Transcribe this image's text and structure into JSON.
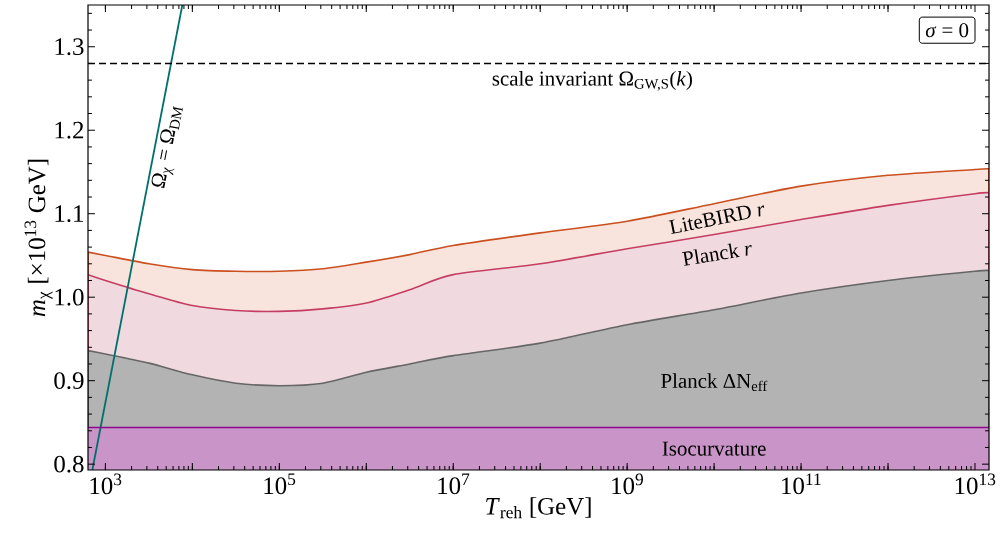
{
  "chart_data": {
    "type": "area",
    "xlabel": "*T*$_{reh}$ [GeV]",
    "ylabel": "*m*$_{χ}$ [×10$^{13}$ GeV]",
    "log": "x",
    "xlim": [
      631,
      14500000000000.0
    ],
    "ylim": [
      0.793,
      1.35
    ],
    "xticks": [
      {
        "value": 1000,
        "label": "10$^{3}$"
      },
      {
        "value": 10000,
        "label": null
      },
      {
        "value": 100000,
        "label": "10$^{5}$"
      },
      {
        "value": 1000000,
        "label": null
      },
      {
        "value": 10000000,
        "label": "10$^{7}$"
      },
      {
        "value": 100000000,
        "label": null
      },
      {
        "value": 1000000000,
        "label": "10$^{9}$"
      },
      {
        "value": 10000000000,
        "label": null
      },
      {
        "value": 100000000000,
        "label": "10$^{11}$"
      },
      {
        "value": 1000000000000,
        "label": null
      },
      {
        "value": 10000000000000,
        "label": "10$^{13}$"
      }
    ],
    "yticks": [
      {
        "value": 0.8,
        "label": "0.8"
      },
      {
        "value": 0.9,
        "label": "0.9"
      },
      {
        "value": 1.0,
        "label": "1.0"
      },
      {
        "value": 1.1,
        "label": "1.1"
      },
      {
        "value": 1.2,
        "label": "1.2"
      },
      {
        "value": 1.3,
        "label": "1.3"
      }
    ],
    "x": [
      631,
      1000,
      3162,
      10000,
      31623,
      100000,
      316228,
      1000000,
      3162278,
      10000000,
      100000000,
      1000000000,
      10000000000,
      100000000000,
      1000000000000,
      10000000000000,
      14500000000000
    ],
    "series": [
      {
        "name": "LiteBIRD *r*",
        "color": "#f8e4dc",
        "values": [
          1.054,
          1.05,
          1.04,
          1.033,
          1.031,
          1.031,
          1.034,
          1.042,
          1.051,
          1.062,
          1.077,
          1.091,
          1.112,
          1.133,
          1.146,
          1.153,
          1.154
        ]
      },
      {
        "name": "Planck *r*",
        "color": "#f0dae0",
        "values": [
          1.027,
          1.02,
          1.004,
          0.99,
          0.984,
          0.983,
          0.986,
          0.993,
          1.009,
          1.027,
          1.04,
          1.058,
          1.075,
          1.093,
          1.11,
          1.124,
          1.125
        ]
      },
      {
        "name": "Planck ΔN$_{eff}$",
        "color": "#b3b3b3",
        "values": [
          0.936,
          0.932,
          0.921,
          0.907,
          0.897,
          0.894,
          0.897,
          0.91,
          0.92,
          0.93,
          0.945,
          0.967,
          0.985,
          1.005,
          1.02,
          1.031,
          1.032
        ]
      },
      {
        "name": "Ω$_{χ}$ = Ω$_{DM}$",
        "type": "line",
        "color": "#00706b",
        "x": [
          708,
          7670
        ],
        "values": [
          0.793,
          1.35
        ]
      }
    ],
    "bands": [
      {
        "axis": "y",
        "from": 0.793,
        "to": 0.844,
        "label": "Isocurvature",
        "color": "#c994c7"
      }
    ],
    "ref_lines": [
      {
        "axis": "y",
        "value": 1.28,
        "label": "scale invariant Ω$_{GW,S}$(*k*)",
        "color": "#000000",
        "line_style": "dashed"
      },
      {
        "axis": "y",
        "value": 0.844,
        "color": "#8b0a8b",
        "line_style": "solid"
      }
    ],
    "annotations": [
      "*σ* = 0"
    ]
  }
}
